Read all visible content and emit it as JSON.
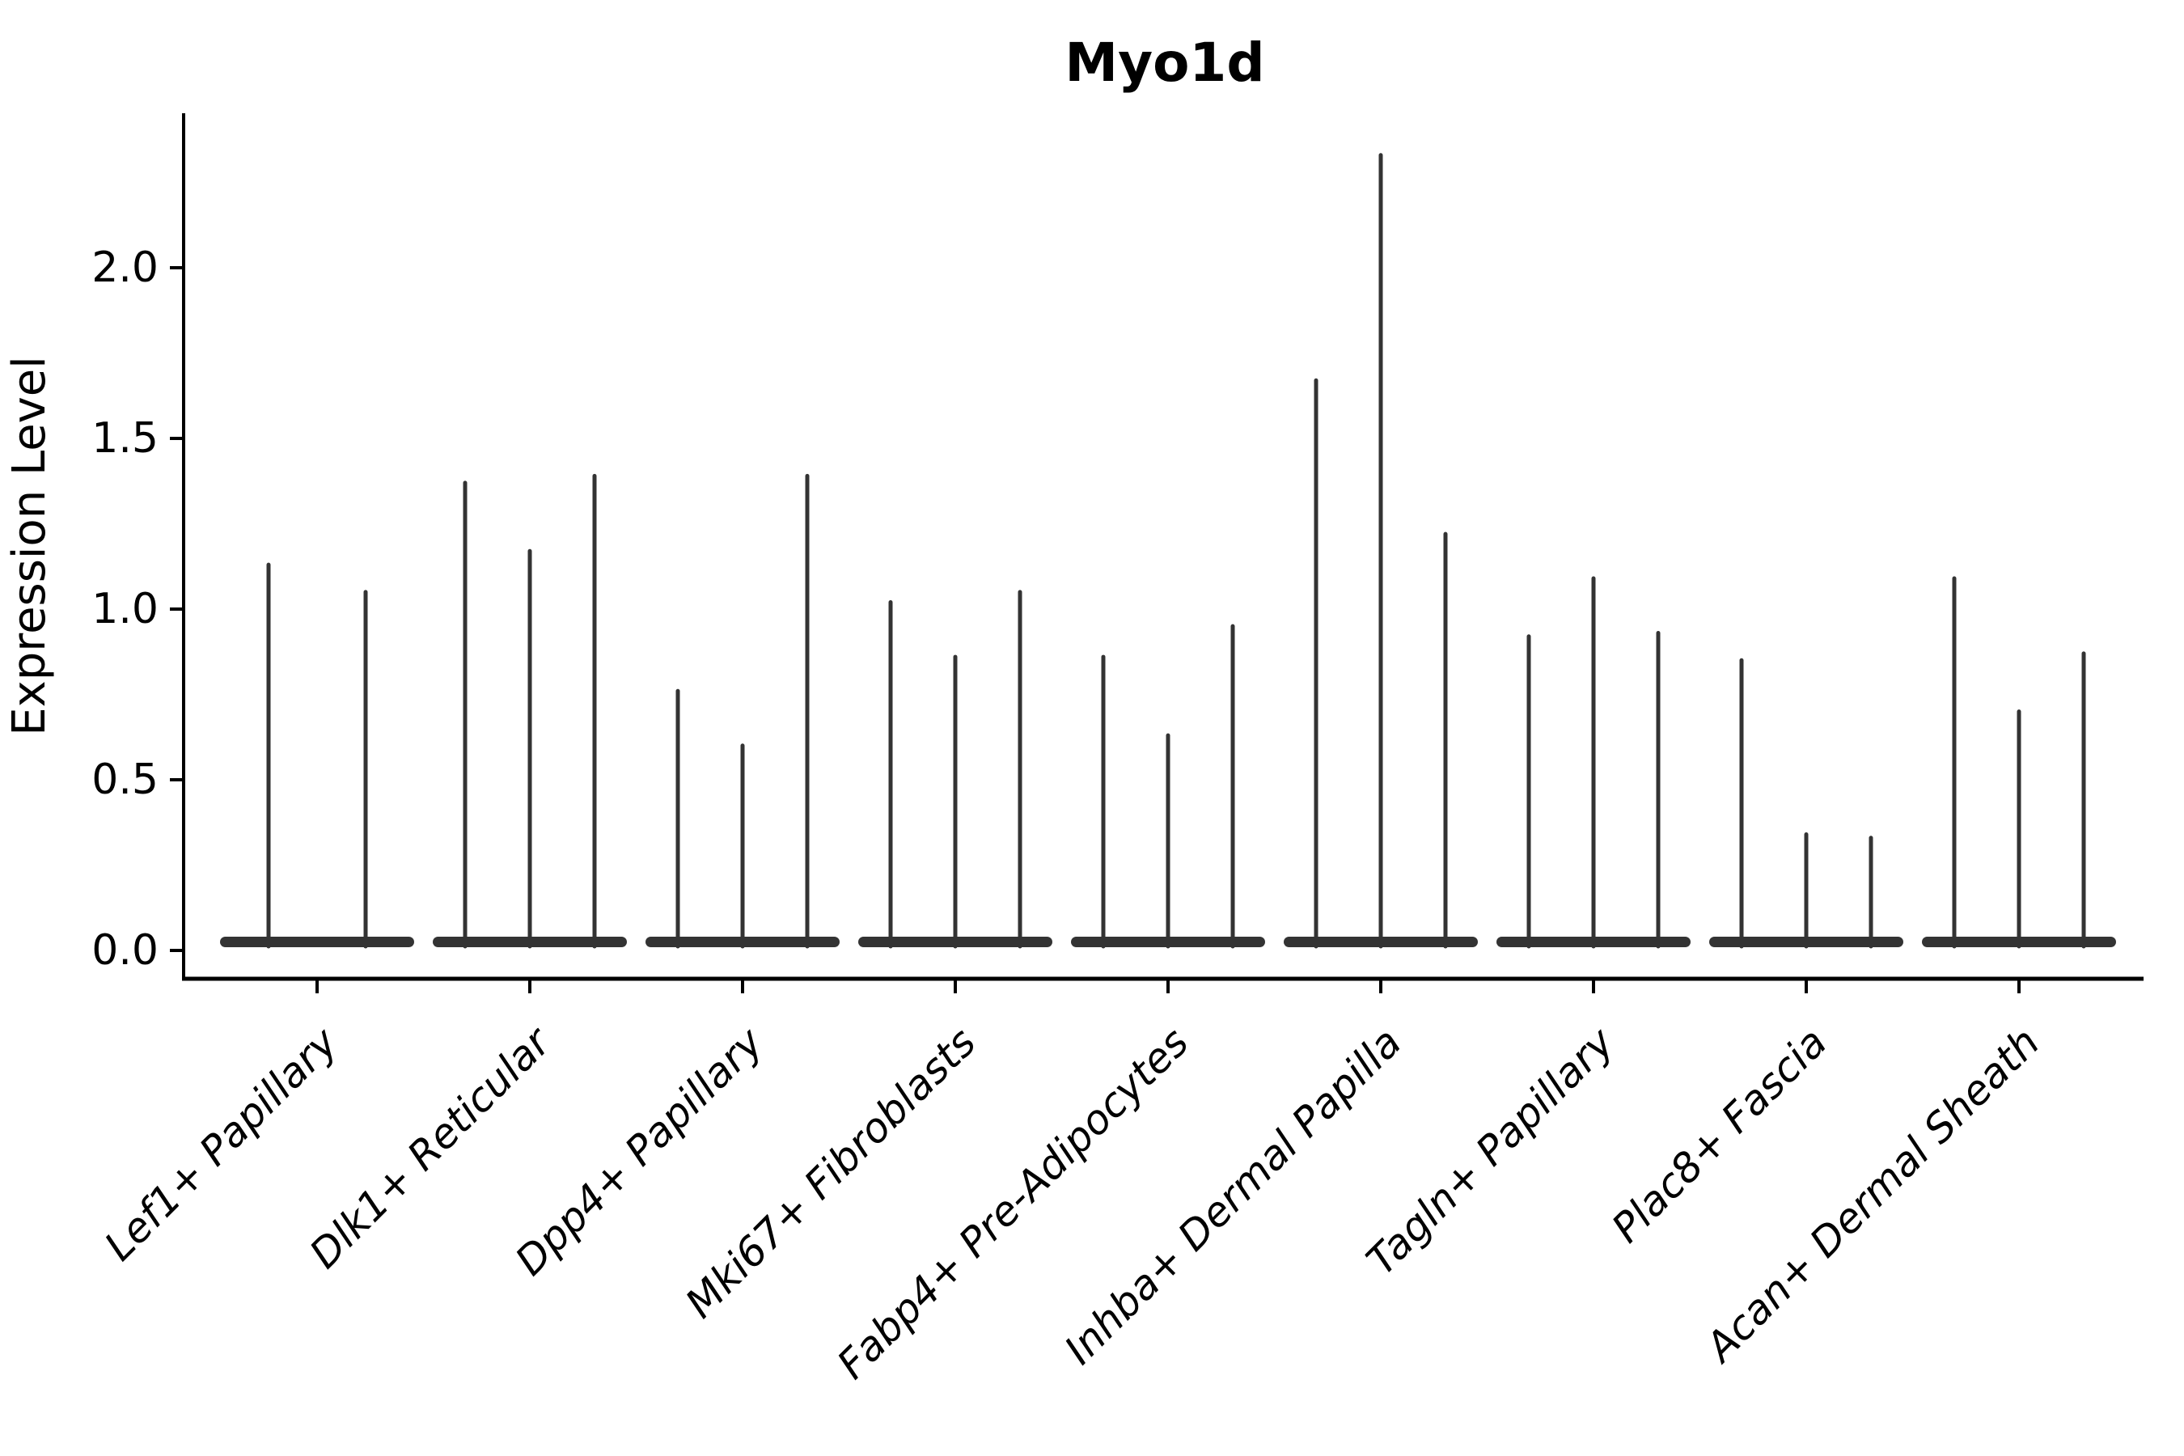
{
  "chart_data": {
    "type": "violin",
    "title": "Myo1d",
    "ylabel": "Expression Level",
    "xlabel": "",
    "yticks": [
      "0.0",
      "0.5",
      "1.0",
      "1.5",
      "2.0"
    ],
    "ytick_values": [
      0.0,
      0.5,
      1.0,
      1.5,
      2.0
    ],
    "ylim": [
      0.0,
      2.45
    ],
    "grid": false,
    "legend": "none",
    "background_color": "#ffffff",
    "violin_color": "#333333",
    "axis_color": "#000000",
    "description": "Zero-inflated expression distributions: each category shows thin violin spikes rising from a flat base at 0",
    "categories": [
      "Lef1+ Papillary",
      "Dlk1+ Reticular",
      "Dpp4+ Papillary",
      "Mki67+ Fibroblasts",
      "Fabp4+ Pre-Adipocytes",
      "Inhba+ Dermal Papilla",
      "Tagln+ Papillary",
      "Plac8+ Fascia",
      "Acan+ Dermal Sheath"
    ],
    "violins": [
      {
        "category": "Lef1+ Papillary",
        "sub_violin_max_expression": [
          1.13,
          1.05
        ]
      },
      {
        "category": "Dlk1+ Reticular",
        "sub_violin_max_expression": [
          1.37,
          1.17,
          1.39
        ]
      },
      {
        "category": "Dpp4+ Papillary",
        "sub_violin_max_expression": [
          0.76,
          0.6,
          1.39
        ]
      },
      {
        "category": "Mki67+ Fibroblasts",
        "sub_violin_max_expression": [
          1.02,
          0.86,
          1.05
        ]
      },
      {
        "category": "Fabp4+ Pre-Adipocytes",
        "sub_violin_max_expression": [
          0.86,
          0.63,
          0.95
        ]
      },
      {
        "category": "Inhba+ Dermal Papilla",
        "sub_violin_max_expression": [
          1.67,
          2.33,
          1.22
        ]
      },
      {
        "category": "Tagln+ Papillary",
        "sub_violin_max_expression": [
          0.92,
          1.09,
          0.93
        ]
      },
      {
        "category": "Plac8+ Fascia",
        "sub_violin_max_expression": [
          0.85,
          0.34,
          0.33
        ]
      },
      {
        "category": "Acan+ Dermal Sheath",
        "sub_violin_max_expression": [
          1.09,
          0.7,
          0.87
        ]
      }
    ]
  }
}
